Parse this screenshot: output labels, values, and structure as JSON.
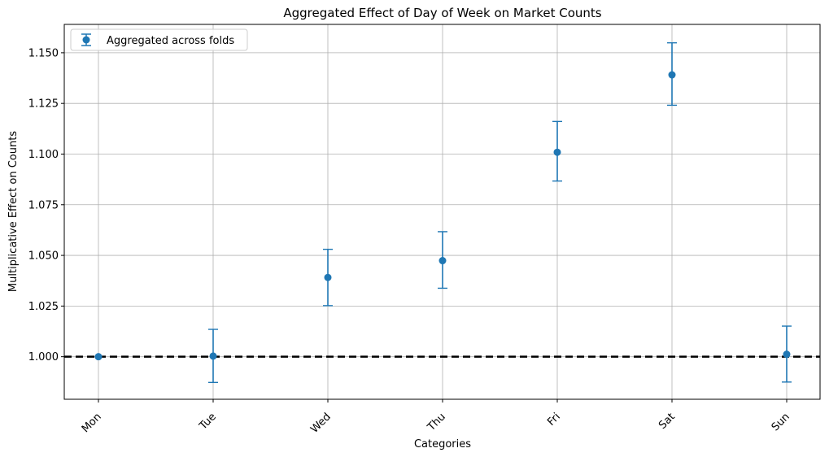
{
  "chart_data": {
    "type": "scatter",
    "title": "Aggregated Effect of Day of Week on Market Counts",
    "xlabel": "Categories",
    "ylabel": "Multiplicative Effect on Counts",
    "categories": [
      "Mon",
      "Tue",
      "Wed",
      "Thu",
      "Fri",
      "Sat",
      "Sun"
    ],
    "series": [
      {
        "name": "Aggregated across folds",
        "values": [
          1.0,
          1.0003,
          1.0391,
          1.0474,
          1.1009,
          1.1391,
          1.0012
        ],
        "error_low": [
          1.0,
          0.9873,
          1.0252,
          1.0338,
          1.0867,
          1.1241,
          0.9875
        ],
        "error_high": [
          1.0,
          1.0135,
          1.053,
          1.0617,
          1.1161,
          1.1549,
          1.0151
        ],
        "color": "#1f77b4"
      }
    ],
    "yticks": [
      "1.000",
      "1.025",
      "1.050",
      "1.075",
      "1.100",
      "1.125",
      "1.150"
    ],
    "ylim": [
      0.979,
      1.164
    ],
    "reference_line": 1.0,
    "reference_line_color": "#000000",
    "grid": true,
    "legend_position": "top-left",
    "xtick_rotation": 45
  }
}
